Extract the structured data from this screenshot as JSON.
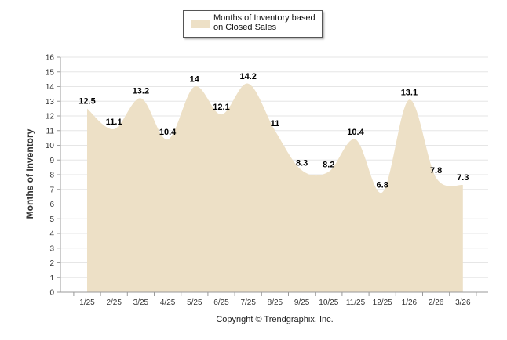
{
  "chart_data": {
    "type": "area",
    "title": "",
    "legend": {
      "label": "Months of Inventory based on Closed Sales",
      "position": "top-center"
    },
    "categories": [
      "1/25",
      "2/25",
      "3/25",
      "4/25",
      "5/25",
      "6/25",
      "7/25",
      "8/25",
      "9/25",
      "10/25",
      "11/25",
      "12/25",
      "1/26",
      "2/26",
      "3/26"
    ],
    "series": [
      {
        "name": "Months of Inventory based on Closed Sales",
        "values": [
          12.5,
          11.1,
          13.2,
          10.4,
          14,
          12.1,
          14.2,
          11,
          8.3,
          8.2,
          10.4,
          6.8,
          13.1,
          7.8,
          7.3
        ]
      }
    ],
    "data_labels": [
      "12.5",
      "11.1",
      "13.2",
      "10.4",
      "14",
      "12.1",
      "14.2",
      "11",
      "8.3",
      "8.2",
      "10.4",
      "6.8",
      "13.1",
      "7.8",
      "7.3"
    ],
    "xlabel": "",
    "ylabel": "Months of Inventory",
    "ylim": [
      0,
      16
    ],
    "yticks": [
      "0",
      "1",
      "2",
      "3",
      "4",
      "5",
      "6",
      "7",
      "8",
      "9",
      "10",
      "11",
      "12",
      "13",
      "14",
      "15",
      "16"
    ],
    "grid": true,
    "colors": {
      "fill": "#ede0c6",
      "grid": "#e6e6e6",
      "axis": "#999999"
    }
  },
  "footer": {
    "copyright": "Copyright © Trendgraphix, Inc."
  }
}
